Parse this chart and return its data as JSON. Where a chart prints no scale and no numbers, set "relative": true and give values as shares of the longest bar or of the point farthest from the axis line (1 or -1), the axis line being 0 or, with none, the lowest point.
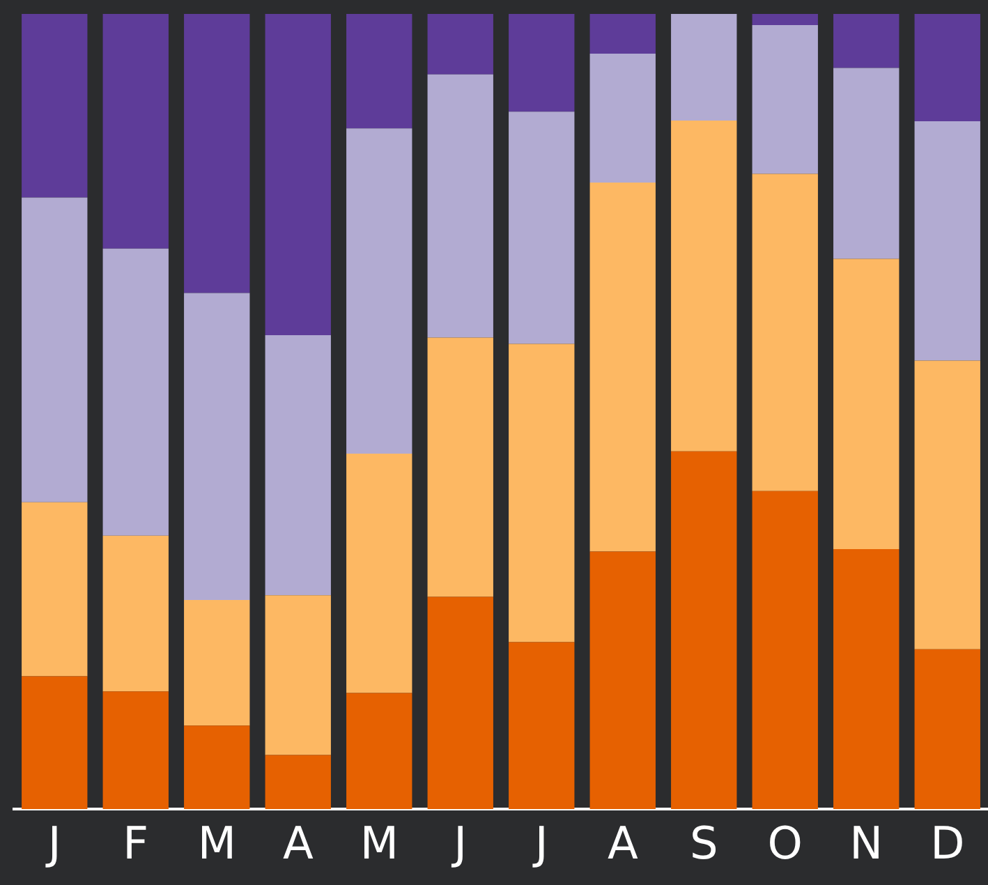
{
  "chart_data": {
    "type": "bar",
    "stacked": true,
    "relative": true,
    "legend": false,
    "grid": false,
    "categories": [
      "J",
      "F",
      "M",
      "A",
      "M",
      "J",
      "J",
      "A",
      "S",
      "O",
      "N",
      "D"
    ],
    "series": [
      {
        "color": "#e66101",
        "values": [
          0.167,
          0.148,
          0.105,
          0.068,
          0.146,
          0.267,
          0.21,
          0.324,
          0.45,
          0.4,
          0.327,
          0.201
        ]
      },
      {
        "color": "#fdb863",
        "values": [
          0.219,
          0.196,
          0.158,
          0.201,
          0.301,
          0.326,
          0.375,
          0.464,
          0.416,
          0.399,
          0.365,
          0.363
        ]
      },
      {
        "color": "#b2abd2",
        "values": [
          0.383,
          0.361,
          0.386,
          0.327,
          0.409,
          0.331,
          0.292,
          0.162,
          0.134,
          0.187,
          0.24,
          0.301
        ]
      },
      {
        "color": "#5e3c99",
        "values": [
          0.231,
          0.295,
          0.351,
          0.404,
          0.144,
          0.076,
          0.123,
          0.05,
          0,
          0.014,
          0.068,
          0.135
        ]
      }
    ]
  }
}
